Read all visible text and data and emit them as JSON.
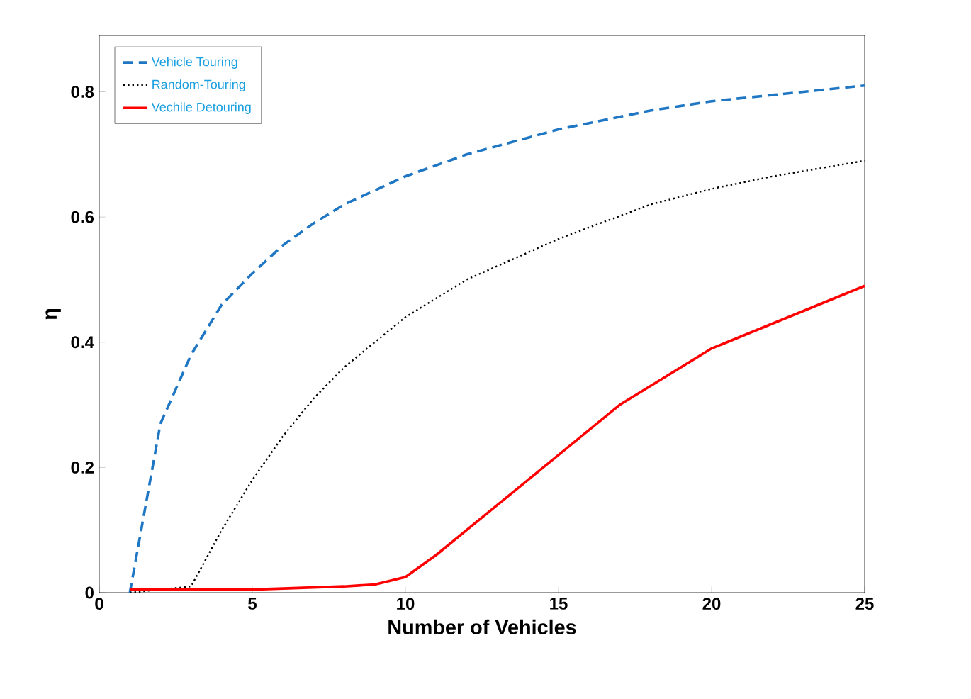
{
  "chart_data": {
    "type": "line",
    "xlabel": "Number of  Vehicles",
    "ylabel": "η",
    "xlim": [
      0,
      25
    ],
    "ylim": [
      0,
      0.89
    ],
    "xticks": [
      0,
      5,
      10,
      15,
      20,
      25
    ],
    "yticks": [
      {
        "value": 0,
        "label": "0"
      },
      {
        "value": 0.2,
        "label": "0.2"
      },
      {
        "value": 0.4,
        "label": "0.4"
      },
      {
        "value": 0.6,
        "label": "0.6"
      },
      {
        "value": 0.8,
        "label": "0.8"
      }
    ],
    "grid": false,
    "legend": "top left",
    "marker": "none",
    "series": [
      {
        "name": "Vehicle Touring",
        "color": "#1f77c4",
        "line_style": "dashed",
        "x": [
          1,
          2,
          3,
          4,
          5,
          6,
          7,
          8,
          10,
          12,
          15,
          18,
          20,
          22,
          25
        ],
        "values": [
          0,
          0.27,
          0.38,
          0.46,
          0.51,
          0.555,
          0.59,
          0.62,
          0.665,
          0.7,
          0.74,
          0.77,
          0.785,
          0.795,
          0.81
        ]
      },
      {
        "name": "Random-Touring",
        "color": "#000000",
        "line_style": "dotted",
        "x": [
          1,
          3,
          4,
          5,
          6,
          7,
          8,
          9,
          10,
          12,
          15,
          18,
          20,
          22,
          25
        ],
        "values": [
          0,
          0.01,
          0.1,
          0.18,
          0.25,
          0.31,
          0.36,
          0.4,
          0.44,
          0.5,
          0.565,
          0.62,
          0.645,
          0.665,
          0.69
        ]
      },
      {
        "name": "Vechile Detouring",
        "color": "#ff0000",
        "line_style": "solid",
        "x": [
          1,
          5,
          8,
          9,
          10,
          11,
          12,
          14,
          15,
          17,
          20,
          22,
          25
        ],
        "values": [
          0.005,
          0.005,
          0.01,
          0.013,
          0.025,
          0.06,
          0.1,
          0.18,
          0.22,
          0.3,
          0.39,
          0.43,
          0.49
        ]
      }
    ]
  }
}
